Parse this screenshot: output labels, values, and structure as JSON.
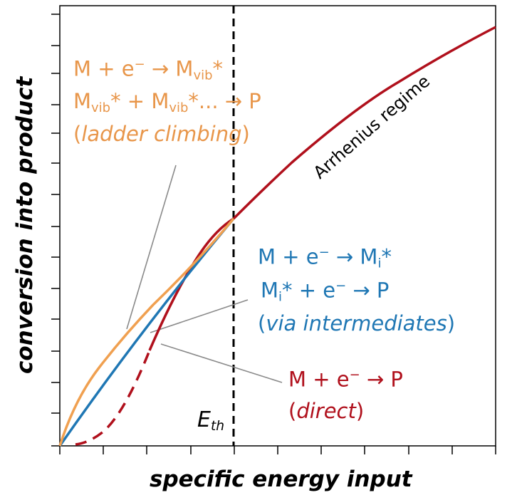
{
  "axes": {
    "x_label": "specific energy input",
    "y_label": "conversion into product",
    "threshold_label": "E",
    "threshold_sub": "th"
  },
  "regime_label": "Arrhenius regime",
  "mechanisms": {
    "ladder": {
      "line1_a": "M + e",
      "line1_sup": "−",
      "line1_b": " → M",
      "line1_sub": "vib",
      "line1_c": "*",
      "line2_a": "M",
      "line2_sub1": "vib",
      "line2_b": "* + M",
      "line2_sub2": "vib",
      "line2_c": "*... → P",
      "caption_open": "(",
      "caption": "ladder climbing",
      "caption_close": ")",
      "color": "#e8964a"
    },
    "intermediates": {
      "line1_a": "M + e",
      "line1_sup": "−",
      "line1_b": " → M",
      "line1_sub": "i",
      "line1_c": "*",
      "line2_a": "M",
      "line2_sub": "i",
      "line2_b": "* + e",
      "line2_sup": "−",
      "line2_c": " → P",
      "caption_open": "(",
      "caption": "via intermediates",
      "caption_close": ")",
      "color": "#1f77b4"
    },
    "direct": {
      "line1_a": "M + e",
      "line1_sup": "−",
      "line1_b": " → P",
      "caption_open": "(",
      "caption": "direct",
      "caption_close": ")",
      "color": "#b0101c"
    }
  }
}
